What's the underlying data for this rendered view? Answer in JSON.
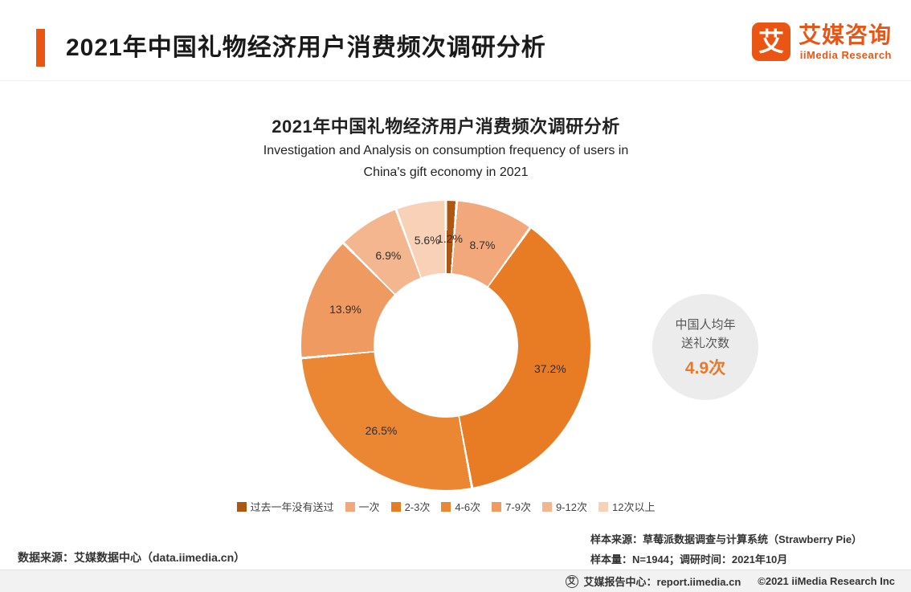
{
  "header": {
    "title": "2021年中国礼物经济用户消费频次调研分析",
    "brand": "艾媒咨询",
    "brand_sub": "iiMedia Research",
    "logo_glyph": "艾"
  },
  "chart": {
    "title": "2021年中国礼物经济用户消费频次调研分析",
    "subtitle_line1": "Investigation and Analysis on consumption frequency of users in",
    "subtitle_line2": "China's gift economy in 2021"
  },
  "chart_data": {
    "type": "pie",
    "donut": true,
    "title": "2021年中国礼物经济用户消费频次调研分析",
    "subtitle": "Investigation and Analysis on consumption frequency of users in China's gift economy in 2021",
    "unit": "%",
    "start_angle_deg": 0,
    "legend_position": "bottom",
    "categories": [
      "过去一年没有送过",
      "一次",
      "2-3次",
      "4-6次",
      "7-9次",
      "9-12次",
      "12次以上"
    ],
    "values": [
      1.2,
      8.7,
      37.2,
      26.5,
      13.9,
      6.9,
      5.6
    ],
    "colors": [
      "#b05613",
      "#f3a87b",
      "#e77c25",
      "#eb8733",
      "#ef9a60",
      "#f4b68e",
      "#f9d1b7"
    ],
    "annotation": {
      "line1": "中国人均年",
      "line2": "送礼次数",
      "value": "4.9次"
    }
  },
  "notes": {
    "sample_source": "样本来源：草莓派数据调查与计算系统（Strawberry Pie）",
    "sample_meta": "样本量：N=1944；调研时间：2021年10月",
    "data_source": "数据来源：艾媒数据中心（data.iimedia.cn）"
  },
  "footer": {
    "icon_glyph": "艾",
    "report": "艾媒报告中心：report.iimedia.cn",
    "copyright": "©2021  iiMedia Research Inc"
  }
}
